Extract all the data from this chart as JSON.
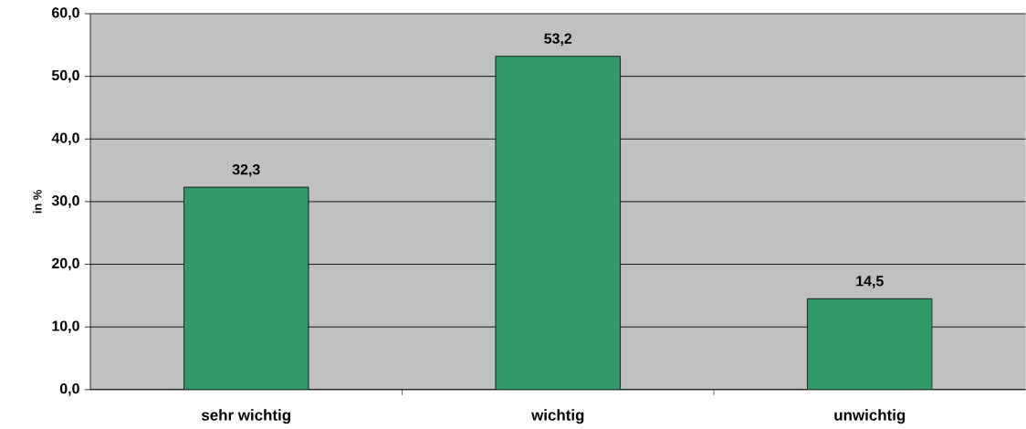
{
  "chart_data": {
    "type": "bar",
    "ylabel": "in %",
    "categories": [
      "sehr wichtig",
      "wichtig",
      "unwichtig"
    ],
    "values": [
      32.3,
      53.2,
      14.5
    ],
    "value_labels": [
      "32,3",
      "53,2",
      "14,5"
    ],
    "color": "#339966",
    "ylim": [
      0,
      60
    ],
    "yticks": [
      {
        "value": 0,
        "label": "0,0"
      },
      {
        "value": 10,
        "label": "10,0"
      },
      {
        "value": 20,
        "label": "20,0"
      },
      {
        "value": 30,
        "label": "30,0"
      },
      {
        "value": 40,
        "label": "40,0"
      },
      {
        "value": 50,
        "label": "50,0"
      },
      {
        "value": 60,
        "label": "60,0"
      }
    ],
    "grid": "y"
  }
}
